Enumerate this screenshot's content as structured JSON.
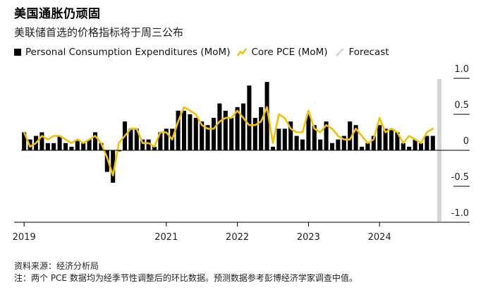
{
  "header": {
    "title": "美国通胀仍顽固",
    "subtitle": "美联储首选的价格指标将于周三公布"
  },
  "legend": {
    "pce_label": "Personal Consumption Expenditures (MoM)",
    "core_label": "Core PCE (MoM)",
    "forecast_label": "Forecast"
  },
  "colors": {
    "bar": "#000000",
    "core": "#f5c000",
    "forecast": "#d4d4d4",
    "axis": "#000000"
  },
  "chart_data": {
    "type": "bar",
    "title": "美国通胀仍顽固",
    "subtitle": "美联储首选的价格指标将于周三公布",
    "xlabel": "",
    "ylabel": "",
    "ylim": [
      -1.0,
      1.0
    ],
    "yticks": [
      "1.0",
      "0.5",
      "0",
      "-0.5",
      "-1.0"
    ],
    "xticks": [
      "2019",
      "2021",
      "2022",
      "2023",
      "2024"
    ],
    "categories": [
      "2019-01",
      "2019-02",
      "2019-03",
      "2019-04",
      "2019-05",
      "2019-06",
      "2019-07",
      "2019-08",
      "2019-09",
      "2019-10",
      "2019-11",
      "2019-12",
      "2020-01",
      "2020-02",
      "2020-03",
      "2020-04",
      "2020-05",
      "2020-06",
      "2020-07",
      "2020-08",
      "2020-09",
      "2020-10",
      "2020-11",
      "2020-12",
      "2021-01",
      "2021-02",
      "2021-03",
      "2021-04",
      "2021-05",
      "2021-06",
      "2021-07",
      "2021-08",
      "2021-09",
      "2021-10",
      "2021-11",
      "2021-12",
      "2022-01",
      "2022-02",
      "2022-03",
      "2022-04",
      "2022-05",
      "2022-06",
      "2022-07",
      "2022-08",
      "2022-09",
      "2022-10",
      "2022-11",
      "2022-12",
      "2023-01",
      "2023-02",
      "2023-03",
      "2023-04",
      "2023-05",
      "2023-06",
      "2023-07",
      "2023-08",
      "2023-09",
      "2023-10",
      "2023-11",
      "2023-12",
      "2024-01",
      "2024-02",
      "2024-03",
      "2024-04",
      "2024-05",
      "2024-06",
      "2024-07",
      "2024-08",
      "2024-09",
      "2024-10"
    ],
    "series": [
      {
        "name": "Personal Consumption Expenditures (MoM)",
        "type": "bar",
        "values": [
          0.25,
          0.15,
          0.2,
          0.25,
          0.1,
          0.1,
          0.2,
          0.1,
          0.05,
          0.15,
          0.1,
          0.15,
          0.25,
          0.1,
          -0.3,
          -0.45,
          0.0,
          0.4,
          0.3,
          0.3,
          0.15,
          0.15,
          0.05,
          0.25,
          0.3,
          0.3,
          0.55,
          0.55,
          0.5,
          0.45,
          0.4,
          0.35,
          0.45,
          0.65,
          0.55,
          0.45,
          0.6,
          0.65,
          0.9,
          0.45,
          0.6,
          0.95,
          0.05,
          0.3,
          0.3,
          0.4,
          0.2,
          0.15,
          0.5,
          0.35,
          0.15,
          0.4,
          0.1,
          0.15,
          0.2,
          0.4,
          0.35,
          0.05,
          0.1,
          0.2,
          0.35,
          0.3,
          0.3,
          0.25,
          0.1,
          0.05,
          0.15,
          0.1,
          0.2,
          0.2
        ]
      },
      {
        "name": "Core PCE (MoM)",
        "type": "line",
        "values": [
          0.25,
          0.05,
          0.1,
          0.2,
          0.15,
          0.2,
          0.2,
          0.15,
          0.1,
          0.15,
          0.1,
          0.15,
          0.2,
          0.1,
          -0.1,
          -0.35,
          0.1,
          0.2,
          0.3,
          0.3,
          0.1,
          0.1,
          0.05,
          0.25,
          0.25,
          0.15,
          0.4,
          0.6,
          0.55,
          0.5,
          0.35,
          0.3,
          0.3,
          0.4,
          0.45,
          0.45,
          0.55,
          0.45,
          0.35,
          0.35,
          0.4,
          0.6,
          0.1,
          0.5,
          0.45,
          0.3,
          0.25,
          0.25,
          0.55,
          0.3,
          0.25,
          0.35,
          0.3,
          0.2,
          0.15,
          0.15,
          0.3,
          0.2,
          0.1,
          0.15,
          0.45,
          0.25,
          0.3,
          0.25,
          0.1,
          0.2,
          0.15,
          0.1,
          0.25,
          0.3
        ]
      }
    ],
    "forecast_index": 69
  },
  "footer": {
    "source": "资料来源：经济分析局",
    "note": "注：两个 PCE 数据均为经季节性调整后的环比数据。预测数据参考彭博经济学家调查中值。"
  }
}
